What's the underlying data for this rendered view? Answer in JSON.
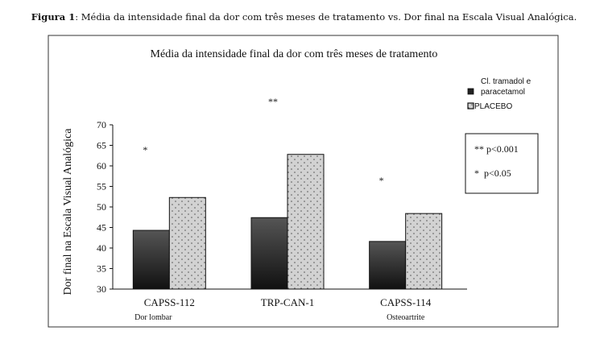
{
  "caption": {
    "label": "Figura 1",
    "text": ": Média da intensidade final da dor com três meses de tratamento vs. Dor final na Escala Visual Analógica."
  },
  "colors": {
    "series_dark": "#2b2b2b",
    "series_light": "#cfcfcf",
    "frame": "#333333"
  },
  "chart_data": {
    "type": "bar",
    "title": "Média da intensidade final da dor com três meses de tratamento",
    "ylabel": "Dor final na Escala Visual Analógica",
    "xlabel": "",
    "ylim": [
      30,
      70
    ],
    "yticks": [
      30,
      35,
      40,
      45,
      50,
      55,
      60,
      65,
      70
    ],
    "categories": [
      "CAPSS-112",
      "TRP-CAN-1",
      "CAPSS-114"
    ],
    "category_sublabels": [
      "Dor lombar",
      "",
      "Osteoartrite"
    ],
    "series": [
      {
        "name": "Cl. tramadol e paracetamol",
        "values": [
          44.3,
          47.4,
          41.6
        ]
      },
      {
        "name": "PLACEBO",
        "values": [
          52.3,
          62.8,
          48.4
        ]
      }
    ],
    "significance_marks": [
      "*",
      "**",
      "*"
    ],
    "legend_position": "right",
    "grid": false,
    "notes": [
      "** p<0.001",
      "*  p<0.05"
    ]
  }
}
